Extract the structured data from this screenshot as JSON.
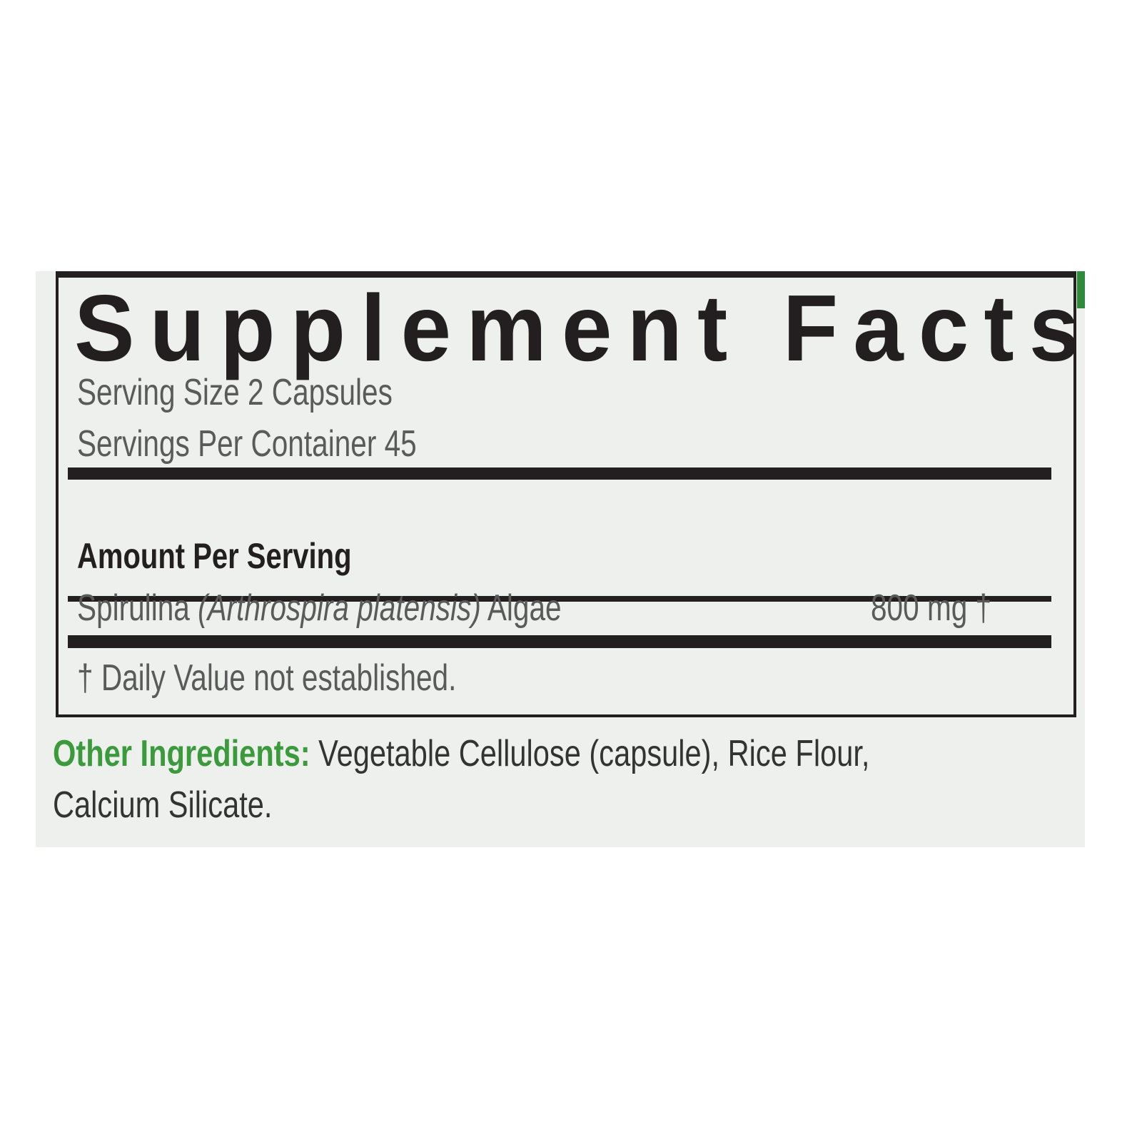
{
  "label": {
    "title": "Supplement Facts",
    "serving_size": "Serving Size 2 Capsules",
    "servings_per_container": "Servings Per Container  45",
    "amount_header": "Amount Per Serving",
    "ingredient": {
      "name": "Spirulina ",
      "latin": "(Arthrospira platensis)",
      "suffix": " Algae",
      "amount": "800 mg †"
    },
    "footnote": "† Daily Value not established.",
    "other_ingredients": {
      "heading": "Other Ingredients:",
      "line1": " Vegetable Cellulose (capsule), Rice Flour,",
      "line2": "Calcium Silicate."
    }
  },
  "colors": {
    "text": "#231f20",
    "accent_green": "#3a9a3c",
    "background": "#eef0ee"
  }
}
